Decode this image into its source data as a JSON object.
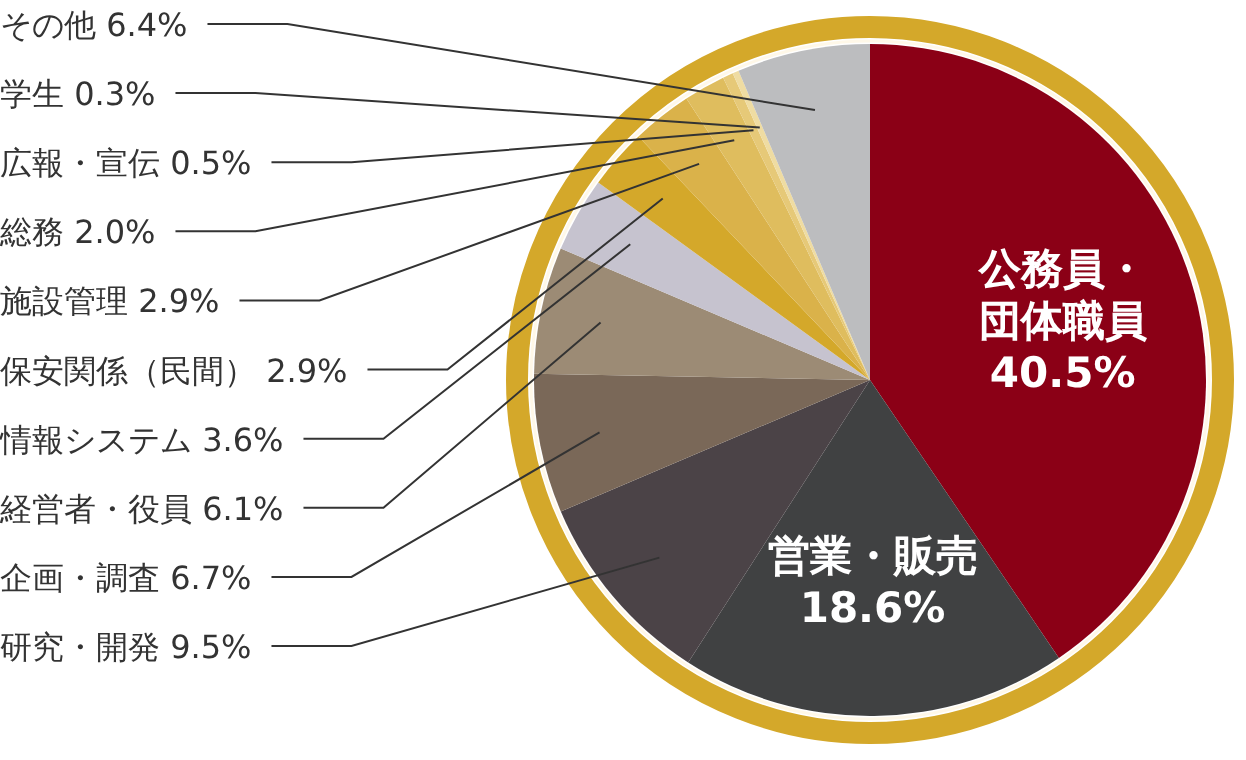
{
  "chart_data": {
    "type": "pie",
    "value_labels": [
      "40.5%",
      "18.6%",
      "9.5%",
      "6.7%",
      "6.1%",
      "3.6%",
      "2.9%",
      "2.9%",
      "2.0%",
      "0.5%",
      "0.3%",
      "6.4%"
    ],
    "categories": [
      "公務員・団体職員",
      "営業・販売",
      "研究・開発",
      "企画・調査",
      "経営者・役員",
      "情報システム",
      "保安関係（民間）",
      "施設管理",
      "総務",
      "広報・宣伝",
      "学生",
      "その他"
    ],
    "values": [
      40.5,
      18.6,
      9.5,
      6.7,
      6.1,
      3.6,
      2.9,
      2.9,
      2.0,
      0.5,
      0.3,
      6.4
    ],
    "colors": [
      "#8b0016",
      "#404142",
      "#4b4347",
      "#7a6858",
      "#9c8b75",
      "#c6c3cf",
      "#d4a82a",
      "#dab24a",
      "#dfbd5e",
      "#e6c978",
      "#efdca2",
      "#bcbdbf"
    ]
  }
}
